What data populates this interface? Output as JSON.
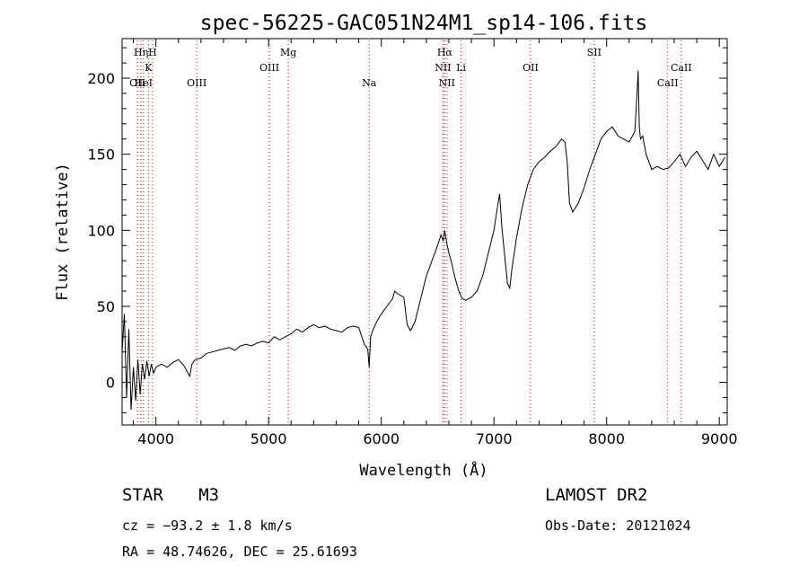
{
  "chart_data": {
    "type": "line",
    "title": "spec-56225-GAC051N24M1_sp14-106.fits",
    "xlabel": "Wavelength (Å)",
    "ylabel": "Flux (relative)",
    "xlim": [
      3700,
      9070
    ],
    "ylim": [
      -28,
      226
    ],
    "xticks": [
      4000,
      5000,
      6000,
      7000,
      8000,
      9000
    ],
    "yticks": [
      0,
      50,
      100,
      150,
      200
    ],
    "grid": false,
    "series": [
      {
        "x": [
          3700,
          3720,
          3740,
          3760,
          3780,
          3800,
          3820,
          3840,
          3860,
          3880,
          3900,
          3920,
          3940,
          3960,
          3980,
          4000,
          4050,
          4100,
          4150,
          4200,
          4250,
          4300,
          4320,
          4350,
          4400,
          4450,
          4500,
          4550,
          4600,
          4650,
          4700,
          4750,
          4800,
          4850,
          4900,
          4950,
          5000,
          5050,
          5100,
          5150,
          5200,
          5250,
          5300,
          5350,
          5400,
          5450,
          5500,
          5550,
          5600,
          5650,
          5700,
          5750,
          5800,
          5850,
          5880,
          5893,
          5905,
          5930,
          5960,
          6000,
          6050,
          6100,
          6120,
          6150,
          6200,
          6230,
          6260,
          6300,
          6350,
          6400,
          6450,
          6500,
          6530,
          6550,
          6563,
          6580,
          6600,
          6620,
          6650,
          6680,
          6700,
          6720,
          6750,
          6800,
          6850,
          6900,
          6950,
          7000,
          7020,
          7050,
          7070,
          7100,
          7120,
          7140,
          7160,
          7200,
          7250,
          7300,
          7350,
          7400,
          7450,
          7500,
          7550,
          7600,
          7630,
          7650,
          7670,
          7700,
          7750,
          7800,
          7850,
          7900,
          7950,
          8000,
          8050,
          8100,
          8150,
          8200,
          8250,
          8270,
          8280,
          8290,
          8300,
          8320,
          8350,
          8400,
          8450,
          8500,
          8550,
          8600,
          8650,
          8700,
          8750,
          8800,
          8850,
          8900,
          8950,
          9000,
          9050
        ],
        "values": [
          20,
          45,
          -10,
          35,
          -18,
          10,
          -12,
          15,
          -8,
          12,
          2,
          14,
          4,
          12,
          6,
          10,
          12,
          10,
          13,
          15,
          11,
          4,
          12,
          15,
          16,
          19,
          20,
          21,
          22,
          23,
          21,
          24,
          25,
          24,
          26,
          27,
          26,
          30,
          28,
          30,
          32,
          35,
          33,
          36,
          38,
          36,
          37,
          35,
          34,
          33,
          36,
          37,
          36,
          25,
          22,
          10,
          30,
          35,
          40,
          45,
          50,
          55,
          60,
          58,
          56,
          38,
          34,
          40,
          55,
          70,
          80,
          90,
          97,
          93,
          100,
          92,
          85,
          80,
          70,
          62,
          58,
          55,
          54,
          56,
          60,
          70,
          85,
          100,
          110,
          124,
          102,
          80,
          65,
          62,
          75,
          95,
          115,
          130,
          140,
          145,
          148,
          152,
          155,
          160,
          158,
          145,
          118,
          112,
          118,
          128,
          140,
          150,
          160,
          165,
          168,
          162,
          160,
          158,
          165,
          190,
          205,
          168,
          160,
          162,
          150,
          140,
          142,
          140,
          141,
          145,
          150,
          142,
          148,
          152,
          146,
          140,
          150,
          142,
          148
        ]
      }
    ],
    "line_marks": [
      {
        "w": 3835,
        "label": "OII",
        "row": 3
      },
      {
        "w": 3868,
        "label": "Hη",
        "row": 1
      },
      {
        "w": 3889,
        "label": "HeI",
        "row": 3
      },
      {
        "w": 3934,
        "label": "K",
        "row": 2
      },
      {
        "w": 3970,
        "label": "H",
        "row": 1
      },
      {
        "w": 4363,
        "label": "OIII",
        "row": 3
      },
      {
        "w": 5007,
        "label": "OIII",
        "row": 2
      },
      {
        "w": 5175,
        "label": "Mg",
        "row": 1
      },
      {
        "w": 5893,
        "label": "Na",
        "row": 3
      },
      {
        "w": 6548,
        "label": "NII",
        "row": 2
      },
      {
        "w": 6563,
        "label": "Hα",
        "row": 1
      },
      {
        "w": 6583,
        "label": "NII",
        "row": 3
      },
      {
        "w": 6708,
        "label": "Li",
        "row": 2
      },
      {
        "w": 7325,
        "label": "OII",
        "row": 2
      },
      {
        "w": 7890,
        "label": "SII",
        "row": 1
      },
      {
        "w": 8542,
        "label": "CaII",
        "row": 3
      },
      {
        "w": 8662,
        "label": "CaII",
        "row": 2
      }
    ]
  },
  "info": {
    "object_class": "STAR",
    "subclass": "M3",
    "survey": "LAMOST DR2",
    "cz": "cz = −93.2 ± 1.8 km/s",
    "obs_date": "Obs-Date: 20121024",
    "coords": "RA =  48.74626, DEC =  25.61693"
  },
  "colors": {
    "axes": "#000000",
    "line_marks": "#cc0000",
    "spectrum": "#000000"
  }
}
